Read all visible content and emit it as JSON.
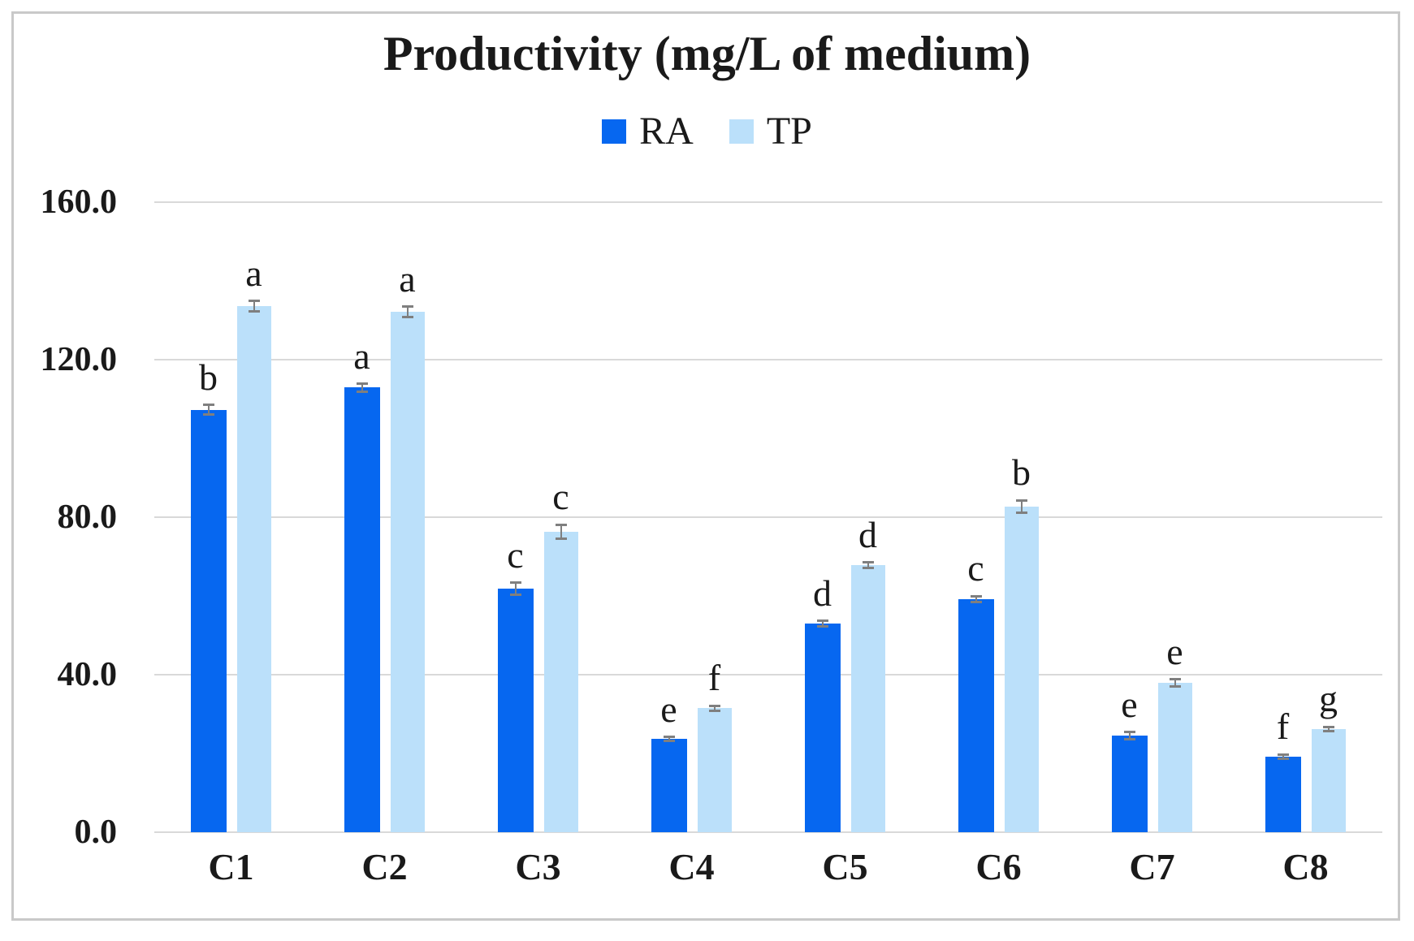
{
  "chart_data": {
    "type": "bar",
    "title": "Productivity (mg/L of medium)",
    "categories": [
      "C1",
      "C2",
      "C3",
      "C4",
      "C5",
      "C6",
      "C7",
      "C8"
    ],
    "series": [
      {
        "name": "RA",
        "color": "#0667F0",
        "values": [
          107.3,
          112.9,
          61.9,
          23.7,
          53.0,
          59.2,
          24.5,
          19.2
        ],
        "errors": [
          1.2,
          1.0,
          1.5,
          0.5,
          0.7,
          0.7,
          0.9,
          0.5
        ],
        "letters": [
          "b",
          "a",
          "c",
          "e",
          "d",
          "c",
          "e",
          "f"
        ]
      },
      {
        "name": "TP",
        "color": "#BBE0FA",
        "values": [
          133.6,
          132.2,
          76.3,
          31.5,
          67.8,
          82.7,
          37.9,
          26.2
        ],
        "errors": [
          1.3,
          1.3,
          1.8,
          0.6,
          0.7,
          1.6,
          0.9,
          0.6
        ],
        "letters": [
          "a",
          "a",
          "c",
          "f",
          "d",
          "b",
          "e",
          "g"
        ]
      }
    ],
    "y_axis": {
      "min": 0,
      "max": 160,
      "step": 40,
      "ticks": [
        {
          "label": "0.0",
          "value": 0
        },
        {
          "label": "40.0",
          "value": 40
        },
        {
          "label": "80.0",
          "value": 80
        },
        {
          "label": "120.0",
          "value": 120
        },
        {
          "label": "160.0",
          "value": 160
        }
      ]
    },
    "grid": true,
    "legend_position": "top-center",
    "grid_color": "#D9D9D9",
    "error_bar_color": "#7F7F7F",
    "frame_border_color": "#C9C9C9"
  }
}
